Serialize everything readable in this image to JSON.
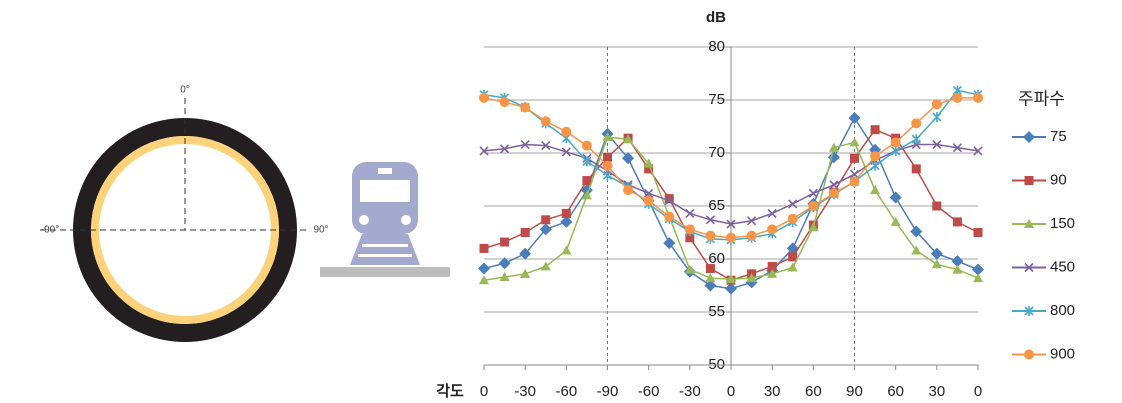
{
  "diagram": {
    "label_top": "0°",
    "label_left": "-90°",
    "label_right": "90°"
  },
  "chart_data": {
    "type": "line",
    "y_label": "dB",
    "x_label": "각도",
    "legend_title": "주파수",
    "x": [
      0,
      15,
      30,
      45,
      60,
      75,
      90,
      105,
      120,
      135,
      150,
      165,
      180,
      195,
      210,
      225,
      240,
      255,
      270,
      285,
      300,
      315,
      330,
      345,
      360
    ],
    "xlim": [
      0,
      360
    ],
    "xticks": [
      {
        "value": 0,
        "label": "0"
      },
      {
        "value": 30,
        "label": "-30"
      },
      {
        "value": 60,
        "label": "-60"
      },
      {
        "value": 90,
        "label": "-90"
      },
      {
        "value": 120,
        "label": "-60"
      },
      {
        "value": 150,
        "label": "-30"
      },
      {
        "value": 180,
        "label": "0"
      },
      {
        "value": 210,
        "label": "30"
      },
      {
        "value": 240,
        "label": "60"
      },
      {
        "value": 270,
        "label": "90"
      },
      {
        "value": 300,
        "label": "60"
      },
      {
        "value": 330,
        "label": "30"
      },
      {
        "value": 360,
        "label": "0"
      }
    ],
    "ylim": [
      50,
      80
    ],
    "yticks": [
      50,
      55,
      60,
      65,
      70,
      75,
      80
    ],
    "grid": true,
    "yaxis_at": 180,
    "vlines": [
      90,
      270
    ],
    "legend": "right",
    "series": [
      {
        "name": "75",
        "color": "#4a7ebb",
        "marker": "diamond",
        "values": [
          59.1,
          59.6,
          60.5,
          62.8,
          63.5,
          66.5,
          71.8,
          69.5,
          65.5,
          61.5,
          58.8,
          57.5,
          57.2,
          57.8,
          58.9,
          61.0,
          65.2,
          69.6,
          73.3,
          70.3,
          65.8,
          62.6,
          60.5,
          59.8,
          59.0
        ]
      },
      {
        "name": "90",
        "color": "#be4b48",
        "marker": "square",
        "values": [
          61.0,
          61.6,
          62.5,
          63.7,
          64.3,
          67.4,
          69.6,
          71.4,
          68.5,
          65.7,
          62.0,
          59.1,
          58.0,
          58.6,
          59.3,
          60.2,
          63.2,
          66.3,
          69.5,
          72.2,
          71.4,
          68.5,
          65.0,
          63.5,
          62.5
        ]
      },
      {
        "name": "150",
        "color": "#98b954",
        "marker": "triangle",
        "values": [
          58.0,
          58.3,
          58.6,
          59.3,
          60.8,
          66.0,
          71.5,
          71.3,
          69.0,
          64.0,
          59.0,
          58.2,
          58.1,
          58.2,
          58.6,
          59.2,
          63.0,
          70.5,
          71.0,
          66.5,
          63.5,
          60.8,
          59.5,
          59.0,
          58.2
        ]
      },
      {
        "name": "450",
        "color": "#7d60a0",
        "marker": "x",
        "values": [
          70.2,
          70.4,
          70.8,
          70.7,
          70.1,
          69.5,
          68.3,
          67.0,
          66.2,
          65.5,
          64.3,
          63.7,
          63.3,
          63.6,
          64.3,
          65.2,
          66.2,
          67.0,
          68.0,
          69.3,
          70.2,
          70.8,
          70.8,
          70.5,
          70.2
        ]
      },
      {
        "name": "800",
        "color": "#46aac5",
        "marker": "star",
        "values": [
          75.5,
          75.2,
          74.3,
          72.8,
          71.4,
          69.2,
          67.9,
          66.8,
          65.2,
          63.8,
          62.6,
          61.9,
          61.8,
          62.0,
          62.4,
          63.5,
          64.9,
          66.1,
          67.3,
          68.8,
          70.2,
          71.3,
          73.4,
          75.9,
          75.5
        ]
      },
      {
        "name": "900",
        "color": "#f69545",
        "marker": "circle",
        "values": [
          75.2,
          74.8,
          74.3,
          73.0,
          72.0,
          70.7,
          68.8,
          66.5,
          65.5,
          64.0,
          62.8,
          62.2,
          62.0,
          62.2,
          62.8,
          63.8,
          65.0,
          66.2,
          67.3,
          69.7,
          71.0,
          72.8,
          74.6,
          75.2,
          75.2
        ]
      }
    ]
  }
}
